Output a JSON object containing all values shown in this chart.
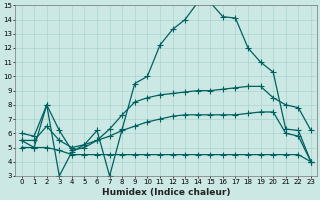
{
  "title": "",
  "xlabel": "Humidex (Indice chaleur)",
  "ylabel": "",
  "bg_color": "#cce8e4",
  "grid_color": "#aad4d0",
  "line_color": "#006060",
  "xlim": [
    -0.5,
    23.5
  ],
  "ylim": [
    3,
    15
  ],
  "xticks": [
    0,
    1,
    2,
    3,
    4,
    5,
    6,
    7,
    8,
    9,
    10,
    11,
    12,
    13,
    14,
    15,
    16,
    17,
    18,
    19,
    20,
    21,
    22,
    23
  ],
  "yticks": [
    3,
    4,
    5,
    6,
    7,
    8,
    9,
    10,
    11,
    12,
    13,
    14,
    15
  ],
  "line1_y": [
    5.5,
    5.0,
    8.0,
    3.0,
    4.7,
    5.2,
    6.2,
    3.0,
    6.3,
    9.5,
    10.0,
    12.2,
    13.3,
    14.0,
    15.2,
    15.2,
    14.2,
    14.1,
    12.0,
    11.0,
    10.3,
    6.3,
    6.2,
    4.0
  ],
  "line2_y": [
    6.0,
    5.8,
    8.0,
    6.2,
    4.8,
    5.0,
    5.5,
    6.3,
    7.3,
    8.2,
    8.5,
    8.7,
    8.8,
    8.9,
    9.0,
    9.0,
    9.1,
    9.2,
    9.3,
    9.3,
    8.5,
    8.0,
    7.8,
    6.2
  ],
  "line3_y": [
    5.5,
    5.5,
    6.5,
    5.5,
    5.0,
    5.2,
    5.5,
    5.8,
    6.2,
    6.5,
    6.8,
    7.0,
    7.2,
    7.3,
    7.3,
    7.3,
    7.3,
    7.3,
    7.4,
    7.5,
    7.5,
    6.0,
    5.8,
    4.0
  ],
  "line4_y": [
    5.0,
    5.0,
    5.0,
    4.8,
    4.5,
    4.5,
    4.5,
    4.5,
    4.5,
    4.5,
    4.5,
    4.5,
    4.5,
    4.5,
    4.5,
    4.5,
    4.5,
    4.5,
    4.5,
    4.5,
    4.5,
    4.5,
    4.5,
    4.0
  ],
  "xlabel_fontsize": 6.5,
  "tick_fontsize": 5.0
}
